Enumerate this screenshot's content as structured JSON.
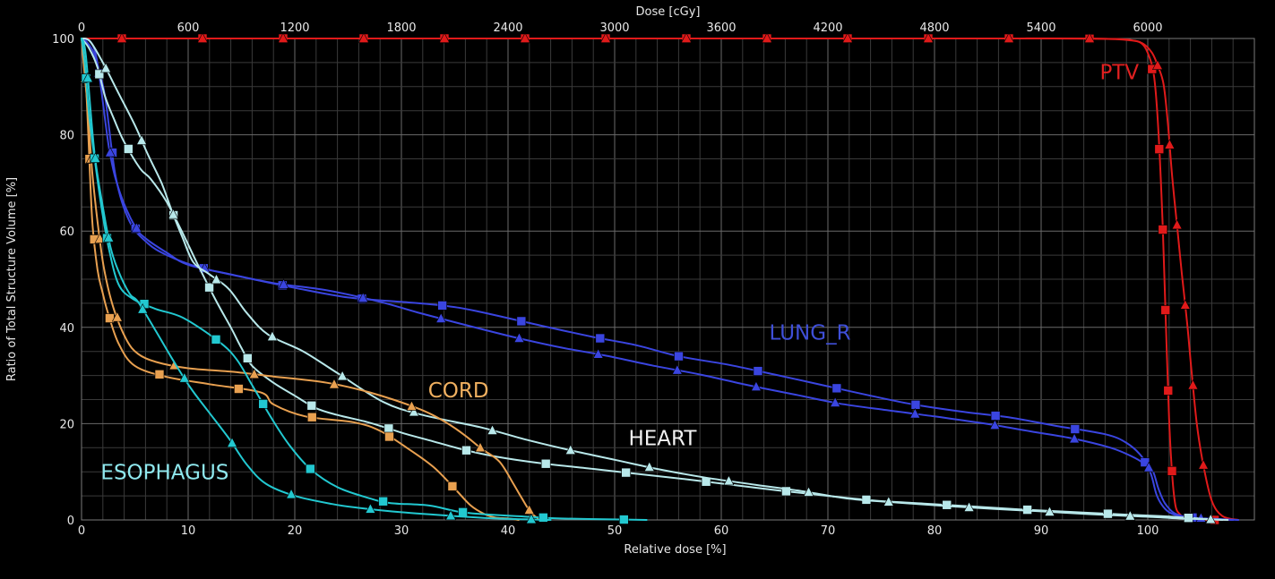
{
  "chart_data": {
    "type": "line",
    "title": "",
    "top_axis_label": "Dose [cGy]",
    "xlabel": "Relative dose [%]",
    "ylabel": "Ratio of Total Structure Volume [%]",
    "xlim": [
      0,
      110
    ],
    "ylim": [
      0,
      100
    ],
    "top_xlim": [
      0,
      6600
    ],
    "grid": true,
    "legend": "none",
    "x_ticks": [
      "0",
      "10",
      "20",
      "30",
      "40",
      "50",
      "60",
      "70",
      "80",
      "90",
      "100"
    ],
    "x_tick_values": [
      0,
      10,
      20,
      30,
      40,
      50,
      60,
      70,
      80,
      90,
      100
    ],
    "y_ticks": [
      "0",
      "20",
      "40",
      "60",
      "80",
      "100"
    ],
    "y_tick_values": [
      0,
      20,
      40,
      60,
      80,
      100
    ],
    "top_ticks": [
      "0",
      "600",
      "1200",
      "1800",
      "2400",
      "3000",
      "3600",
      "4200",
      "4800",
      "5400",
      "6000"
    ],
    "top_tick_values": [
      0,
      600,
      1200,
      1800,
      2400,
      3000,
      3600,
      4200,
      4800,
      5400,
      6000
    ],
    "annotations": [
      {
        "text": "PTV",
        "x": 95.5,
        "y": 91.5,
        "color": "#e02020"
      },
      {
        "text": "LUNG_R",
        "x": 64.5,
        "y": 37.5,
        "color": "#3f4fd8"
      },
      {
        "text": "CORD",
        "x": 32.5,
        "y": 25.5,
        "color": "#f0b060"
      },
      {
        "text": "HEART",
        "x": 51.3,
        "y": 15.5,
        "color": "#f2f2f2"
      },
      {
        "text": "ESOPHAGUS",
        "x": 1.8,
        "y": 8.5,
        "color": "#8fe8ee"
      }
    ],
    "series": [
      {
        "name": "PTV",
        "color": "#e01a1a",
        "marker": "square",
        "x": [
          0,
          9,
          18,
          27,
          36,
          45,
          54,
          63,
          72,
          81,
          90,
          97,
          98.6,
          99.4,
          100,
          100.6,
          101,
          101.4,
          101.7,
          102,
          102.3,
          102.6,
          103,
          103.6,
          104.5,
          107,
          108
        ],
        "y": [
          100,
          100,
          100,
          100,
          100,
          100,
          100,
          100,
          100,
          100,
          100,
          99.9,
          99.6,
          99,
          97,
          92,
          80.7,
          61,
          40.8,
          21,
          9,
          3,
          1.2,
          0.3,
          0,
          0,
          0
        ]
      },
      {
        "name": "PTV",
        "color": "#e01a1a",
        "marker": "triangle",
        "x": [
          0,
          4.5,
          13.5,
          22.5,
          31.5,
          40.5,
          49.5,
          58.5,
          67.5,
          76.5,
          85.5,
          94.5,
          98,
          99.5,
          100.4,
          101,
          101.5,
          101.9,
          102.3,
          102.8,
          103.2,
          103.7,
          104.1,
          104.6,
          105.2,
          106,
          107,
          108.5
        ],
        "y": [
          100,
          100,
          100,
          100,
          100,
          100,
          100,
          100,
          100,
          100,
          100,
          100,
          99.7,
          99,
          97,
          94,
          90.3,
          82,
          71,
          60,
          51,
          40.8,
          31,
          20,
          11.5,
          4,
          0.8,
          0
        ]
      },
      {
        "name": "LUNG_R",
        "color": "#3a45e0",
        "marker": "square",
        "x": [
          0,
          0.6,
          1.3,
          2.2,
          3.2,
          4.5,
          6.2,
          8,
          11,
          15,
          20,
          25,
          30,
          34,
          37,
          43,
          48,
          52,
          56,
          60.5,
          65,
          69.5,
          74,
          78,
          82.5,
          87,
          91.5,
          96,
          98,
          99.5,
          100.3,
          100.8,
          101.3,
          102,
          103,
          105,
          108
        ],
        "y": [
          100,
          99,
          96,
          88,
          71.3,
          62,
          57.5,
          55,
          52.5,
          50.5,
          48.2,
          46.2,
          45.3,
          44.5,
          43.4,
          40.4,
          38,
          36.3,
          34,
          32.3,
          30.2,
          28,
          25.8,
          24,
          22.5,
          21.3,
          19.5,
          17.8,
          16,
          13,
          9.5,
          5.4,
          3.2,
          1.6,
          0.8,
          0.3,
          0
        ]
      },
      {
        "name": "LUNG_R",
        "color": "#3a45e0",
        "marker": "triangle",
        "x": [
          0,
          1.3,
          2.6,
          3.6,
          5,
          6,
          8,
          10,
          14,
          18,
          23,
          28,
          31.5,
          36,
          40.5,
          45,
          49,
          53.5,
          58,
          62.5,
          67,
          71,
          75.5,
          80,
          84.5,
          89,
          93,
          96.5,
          98.5,
          99.8,
          100.5,
          101,
          101.6,
          102.5,
          104,
          106.5,
          108.5
        ],
        "y": [
          100,
          97,
          77,
          68,
          61,
          58.5,
          55.5,
          53,
          51,
          49.2,
          47.7,
          45.3,
          43.1,
          40.5,
          38,
          35.8,
          34.2,
          32.1,
          30.2,
          28,
          26,
          24.2,
          22.8,
          21.5,
          20.1,
          18.4,
          16.9,
          15,
          13.2,
          11.5,
          10,
          6.5,
          3.5,
          1.4,
          0.5,
          0.2,
          0
        ]
      },
      {
        "name": "HEART",
        "color": "#b8e8ea",
        "marker": "square",
        "x": [
          0,
          0.7,
          1.5,
          2.2,
          3,
          4,
          5.5,
          6.5,
          8,
          9.5,
          10.8,
          12.5,
          14,
          15,
          16,
          18,
          20,
          22,
          24,
          26.5,
          28.5,
          30.5,
          33,
          36,
          39,
          43,
          48,
          52,
          56.5,
          61,
          65.5,
          70,
          74.5,
          79,
          83.5,
          88,
          92.5,
          97,
          101.3,
          104,
          107
        ],
        "y": [
          100,
          98,
          94,
          88,
          83.5,
          78.5,
          73,
          70.8,
          66,
          59.5,
          53.5,
          46,
          40,
          35.7,
          32,
          28.5,
          25.8,
          23.2,
          21.8,
          20.5,
          19.2,
          17.8,
          16.3,
          14.5,
          13.1,
          11.8,
          10.6,
          9.6,
          8.5,
          7.3,
          6.1,
          5,
          4,
          3.4,
          2.8,
          2.2,
          1.7,
          1.2,
          0.8,
          0.4,
          0
        ]
      },
      {
        "name": "HEART",
        "color": "#b8e8ea",
        "marker": "triangle",
        "x": [
          0,
          0.8,
          2,
          3.5,
          5,
          6.2,
          7.5,
          8.5,
          9.5,
          10.5,
          12,
          13.8,
          15.5,
          17.5,
          20.8,
          24,
          28.3,
          32,
          37.5,
          42,
          45.8,
          50,
          54.2,
          58.5,
          63.2,
          67.5,
          72,
          76.5,
          81,
          85.5,
          89.8,
          94.5,
          98.5,
          100.5,
          103,
          107.5
        ],
        "y": [
          100,
          99.4,
          95,
          88.5,
          82,
          76,
          70,
          64,
          58.5,
          53.5,
          51,
          48,
          43,
          38.5,
          35,
          30.5,
          24.5,
          21.8,
          19.2,
          16.5,
          14.5,
          12.5,
          10.5,
          8.8,
          7.3,
          6,
          4.4,
          3.6,
          2.9,
          2.3,
          1.8,
          1.2,
          0.8,
          0.6,
          0.3,
          0
        ]
      },
      {
        "name": "CORD",
        "color": "#e8a050",
        "marker": "square",
        "x": [
          0,
          0.3,
          0.6,
          1,
          1.5,
          2,
          2.5,
          3.5,
          5,
          8,
          12,
          16.8,
          18,
          21,
          25.5,
          28,
          30.5,
          33,
          35,
          36.5,
          37.8,
          38.8,
          40,
          41
        ],
        "y": [
          100,
          95,
          82,
          62.3,
          52,
          47,
          42.8,
          36.5,
          32,
          29.7,
          28.2,
          26.5,
          24,
          21.5,
          20.3,
          18.5,
          15,
          11,
          6.5,
          3,
          1.2,
          0.5,
          0.3,
          0
        ]
      },
      {
        "name": "CORD",
        "color": "#e8a050",
        "marker": "triangle",
        "x": [
          0,
          0.3,
          0.6,
          1,
          1.5,
          2.1,
          3,
          4.2,
          5.3,
          7,
          10,
          14,
          18,
          23,
          27,
          31.5,
          34,
          36,
          37.5,
          39.2,
          40.5,
          41.3,
          42,
          42.7,
          43.5
        ],
        "y": [
          100,
          92.3,
          85,
          72.3,
          62,
          52.3,
          44,
          37.5,
          34.5,
          32.8,
          31.5,
          30.8,
          29.8,
          28.5,
          26.5,
          23.2,
          20.5,
          17.5,
          14.8,
          12.1,
          7.5,
          4.5,
          2,
          0.5,
          0
        ]
      },
      {
        "name": "ESOPHAGUS",
        "color": "#22c8d0",
        "marker": "square",
        "x": [
          0,
          0.3,
          0.7,
          1.2,
          1.9,
          2.6,
          3.5,
          4.9,
          7,
          9.5,
          12.8,
          14.5,
          16,
          17.8,
          19.5,
          21.5,
          24,
          27,
          29,
          32.6,
          36,
          41.5,
          45,
          50.5,
          53
        ],
        "y": [
          100,
          95,
          84.3,
          75.5,
          64.5,
          56,
          48.8,
          45.8,
          43.8,
          42,
          37.2,
          33.5,
          28,
          21.2,
          15.5,
          10.5,
          6.8,
          4.5,
          3.5,
          3,
          1.5,
          0.7,
          0.3,
          0.1,
          0
        ]
      },
      {
        "name": "ESOPHAGUS",
        "color": "#22c8d0",
        "marker": "triangle",
        "x": [
          0,
          0.4,
          1.2,
          2,
          2.7,
          3.4,
          4.5,
          5.3,
          6.9,
          8.5,
          10.2,
          11.8,
          13.8,
          15.5,
          17.3,
          20,
          23.5,
          26,
          30,
          35,
          39,
          44
        ],
        "y": [
          100,
          96.5,
          76.5,
          65,
          56.8,
          52,
          47,
          45.3,
          39.5,
          33.5,
          27.5,
          22.8,
          17,
          11.5,
          7.5,
          5,
          3.3,
          2.5,
          1.6,
          0.8,
          0.3,
          0
        ]
      }
    ]
  }
}
